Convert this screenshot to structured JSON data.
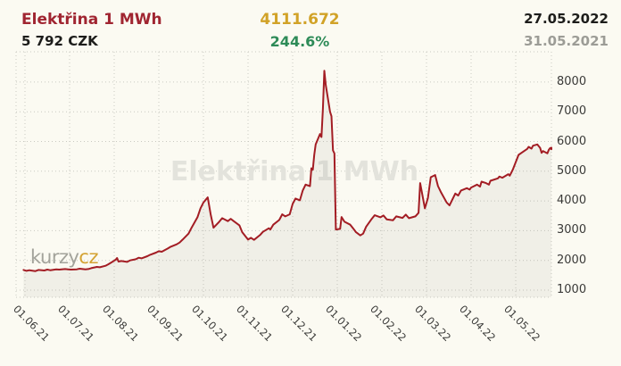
{
  "header": {
    "title": "Elektřina 1 MWh",
    "price": "5 792 CZK",
    "change_abs": "4111.672",
    "change_pct": "244.6%",
    "date_to": "27.05.2022",
    "date_from": "31.05.2021"
  },
  "watermark": "Elektřina 1 MWh",
  "logo": {
    "gray_part": "kurzy",
    "gold_part": "cz"
  },
  "colors": {
    "background": "#fbfaf2",
    "line": "#a31d24",
    "area_fill": "rgba(150,150,135,0.10)",
    "grid": "#c9c9c1",
    "title": "#a02531",
    "gold": "#d1a227",
    "green": "#2e8b58",
    "gray": "#9c9c96",
    "watermark": "#e3e3dc",
    "logo_gray": "#a3a39b",
    "logo_gold": "#d4a334",
    "axis_text": "#3a3a38"
  },
  "chart_data": {
    "type": "line",
    "title": "Elektřina 1 MWh",
    "unit": "CZK",
    "xlabel": "",
    "ylabel": "",
    "grid": true,
    "legend": false,
    "ylim": [
      760,
      9000
    ],
    "y_ticks": [
      8000,
      7000,
      6000,
      5000,
      4000,
      3000,
      2000,
      1000
    ],
    "x_ticks": [
      {
        "label": "01.06.21",
        "date": "2021-06-01"
      },
      {
        "label": "01.07.21",
        "date": "2021-07-01"
      },
      {
        "label": "01.08.21",
        "date": "2021-08-01"
      },
      {
        "label": "01.09.21",
        "date": "2021-09-01"
      },
      {
        "label": "01.10.21",
        "date": "2021-10-01"
      },
      {
        "label": "01.11.21",
        "date": "2021-11-01"
      },
      {
        "label": "01.12.21",
        "date": "2021-12-01"
      },
      {
        "label": "01.01.22",
        "date": "2022-01-01"
      },
      {
        "label": "01.02.22",
        "date": "2022-02-01"
      },
      {
        "label": "01.03.22",
        "date": "2022-03-01"
      },
      {
        "label": "01.04.22",
        "date": "2022-04-01"
      },
      {
        "label": "01.05.22",
        "date": "2022-05-01"
      }
    ],
    "series": [
      {
        "name": "Elektřina 1 MWh",
        "color": "#a31d24",
        "points": [
          [
            "2021-05-31",
            1680
          ],
          [
            "2021-06-02",
            1650
          ],
          [
            "2021-06-04",
            1670
          ],
          [
            "2021-06-08",
            1640
          ],
          [
            "2021-06-10",
            1680
          ],
          [
            "2021-06-14",
            1660
          ],
          [
            "2021-06-16",
            1690
          ],
          [
            "2021-06-18",
            1670
          ],
          [
            "2021-06-22",
            1700
          ],
          [
            "2021-06-24",
            1690
          ],
          [
            "2021-06-28",
            1710
          ],
          [
            "2021-06-30",
            1700
          ],
          [
            "2021-07-02",
            1690
          ],
          [
            "2021-07-06",
            1700
          ],
          [
            "2021-07-08",
            1720
          ],
          [
            "2021-07-12",
            1700
          ],
          [
            "2021-07-14",
            1710
          ],
          [
            "2021-07-16",
            1740
          ],
          [
            "2021-07-20",
            1780
          ],
          [
            "2021-07-22",
            1770
          ],
          [
            "2021-07-26",
            1820
          ],
          [
            "2021-07-28",
            1870
          ],
          [
            "2021-07-30",
            1930
          ],
          [
            "2021-08-02",
            2020
          ],
          [
            "2021-08-03",
            2080
          ],
          [
            "2021-08-04",
            1960
          ],
          [
            "2021-08-06",
            1980
          ],
          [
            "2021-08-10",
            1950
          ],
          [
            "2021-08-12",
            2000
          ],
          [
            "2021-08-16",
            2040
          ],
          [
            "2021-08-18",
            2090
          ],
          [
            "2021-08-20",
            2070
          ],
          [
            "2021-08-24",
            2140
          ],
          [
            "2021-08-26",
            2190
          ],
          [
            "2021-08-30",
            2260
          ],
          [
            "2021-09-01",
            2310
          ],
          [
            "2021-09-03",
            2290
          ],
          [
            "2021-09-07",
            2400
          ],
          [
            "2021-09-09",
            2460
          ],
          [
            "2021-09-13",
            2540
          ],
          [
            "2021-09-15",
            2600
          ],
          [
            "2021-09-17",
            2700
          ],
          [
            "2021-09-21",
            2900
          ],
          [
            "2021-09-23",
            3100
          ],
          [
            "2021-09-27",
            3450
          ],
          [
            "2021-09-29",
            3750
          ],
          [
            "2021-10-01",
            3950
          ],
          [
            "2021-10-04",
            4120
          ],
          [
            "2021-10-06",
            3550
          ],
          [
            "2021-10-08",
            3100
          ],
          [
            "2021-10-12",
            3300
          ],
          [
            "2021-10-14",
            3420
          ],
          [
            "2021-10-18",
            3320
          ],
          [
            "2021-10-20",
            3400
          ],
          [
            "2021-10-22",
            3320
          ],
          [
            "2021-10-26",
            3180
          ],
          [
            "2021-10-28",
            2950
          ],
          [
            "2021-11-01",
            2700
          ],
          [
            "2021-11-03",
            2760
          ],
          [
            "2021-11-05",
            2690
          ],
          [
            "2021-11-09",
            2850
          ],
          [
            "2021-11-11",
            2960
          ],
          [
            "2021-11-15",
            3080
          ],
          [
            "2021-11-16",
            3040
          ],
          [
            "2021-11-18",
            3200
          ],
          [
            "2021-11-22",
            3360
          ],
          [
            "2021-11-24",
            3550
          ],
          [
            "2021-11-26",
            3480
          ],
          [
            "2021-11-29",
            3550
          ],
          [
            "2021-12-01",
            3900
          ],
          [
            "2021-12-03",
            4080
          ],
          [
            "2021-12-06",
            4020
          ],
          [
            "2021-12-08",
            4350
          ],
          [
            "2021-12-10",
            4550
          ],
          [
            "2021-12-13",
            4500
          ],
          [
            "2021-12-14",
            5100
          ],
          [
            "2021-12-15",
            5050
          ],
          [
            "2021-12-16",
            5550
          ],
          [
            "2021-12-17",
            5900
          ],
          [
            "2021-12-20",
            6250
          ],
          [
            "2021-12-21",
            6150
          ],
          [
            "2021-12-22",
            7100
          ],
          [
            "2021-12-23",
            8380
          ],
          [
            "2021-12-24",
            7900
          ],
          [
            "2021-12-27",
            7000
          ],
          [
            "2021-12-28",
            6850
          ],
          [
            "2021-12-29",
            5700
          ],
          [
            "2021-12-30",
            5600
          ],
          [
            "2021-12-31",
            3040
          ],
          [
            "2022-01-03",
            3060
          ],
          [
            "2022-01-04",
            3460
          ],
          [
            "2022-01-06",
            3300
          ],
          [
            "2022-01-10",
            3200
          ],
          [
            "2022-01-12",
            3080
          ],
          [
            "2022-01-14",
            2950
          ],
          [
            "2022-01-17",
            2840
          ],
          [
            "2022-01-19",
            2900
          ],
          [
            "2022-01-21",
            3130
          ],
          [
            "2022-01-25",
            3400
          ],
          [
            "2022-01-27",
            3520
          ],
          [
            "2022-01-31",
            3450
          ],
          [
            "2022-02-02",
            3510
          ],
          [
            "2022-02-04",
            3380
          ],
          [
            "2022-02-08",
            3350
          ],
          [
            "2022-02-10",
            3480
          ],
          [
            "2022-02-14",
            3430
          ],
          [
            "2022-02-16",
            3540
          ],
          [
            "2022-02-18",
            3420
          ],
          [
            "2022-02-22",
            3480
          ],
          [
            "2022-02-24",
            3600
          ],
          [
            "2022-02-25",
            4600
          ],
          [
            "2022-02-28",
            3750
          ],
          [
            "2022-03-02",
            4100
          ],
          [
            "2022-03-04",
            4800
          ],
          [
            "2022-03-07",
            4870
          ],
          [
            "2022-03-09",
            4500
          ],
          [
            "2022-03-11",
            4300
          ],
          [
            "2022-03-15",
            3950
          ],
          [
            "2022-03-17",
            3850
          ],
          [
            "2022-03-21",
            4250
          ],
          [
            "2022-03-23",
            4180
          ],
          [
            "2022-03-25",
            4350
          ],
          [
            "2022-03-29",
            4430
          ],
          [
            "2022-03-31",
            4380
          ],
          [
            "2022-04-01",
            4450
          ],
          [
            "2022-04-05",
            4550
          ],
          [
            "2022-04-07",
            4480
          ],
          [
            "2022-04-08",
            4650
          ],
          [
            "2022-04-11",
            4600
          ],
          [
            "2022-04-13",
            4550
          ],
          [
            "2022-04-14",
            4680
          ],
          [
            "2022-04-19",
            4760
          ],
          [
            "2022-04-20",
            4820
          ],
          [
            "2022-04-22",
            4780
          ],
          [
            "2022-04-26",
            4900
          ],
          [
            "2022-04-27",
            4850
          ],
          [
            "2022-04-28",
            4950
          ],
          [
            "2022-04-29",
            5050
          ],
          [
            "2022-05-03",
            5550
          ],
          [
            "2022-05-05",
            5620
          ],
          [
            "2022-05-09",
            5750
          ],
          [
            "2022-05-10",
            5820
          ],
          [
            "2022-05-12",
            5760
          ],
          [
            "2022-05-13",
            5860
          ],
          [
            "2022-05-16",
            5900
          ],
          [
            "2022-05-17",
            5840
          ],
          [
            "2022-05-18",
            5780
          ],
          [
            "2022-05-19",
            5620
          ],
          [
            "2022-05-20",
            5680
          ],
          [
            "2022-05-23",
            5600
          ],
          [
            "2022-05-24",
            5720
          ],
          [
            "2022-05-25",
            5780
          ],
          [
            "2022-05-26",
            5740
          ],
          [
            "2022-05-27",
            5792
          ]
        ]
      }
    ]
  }
}
